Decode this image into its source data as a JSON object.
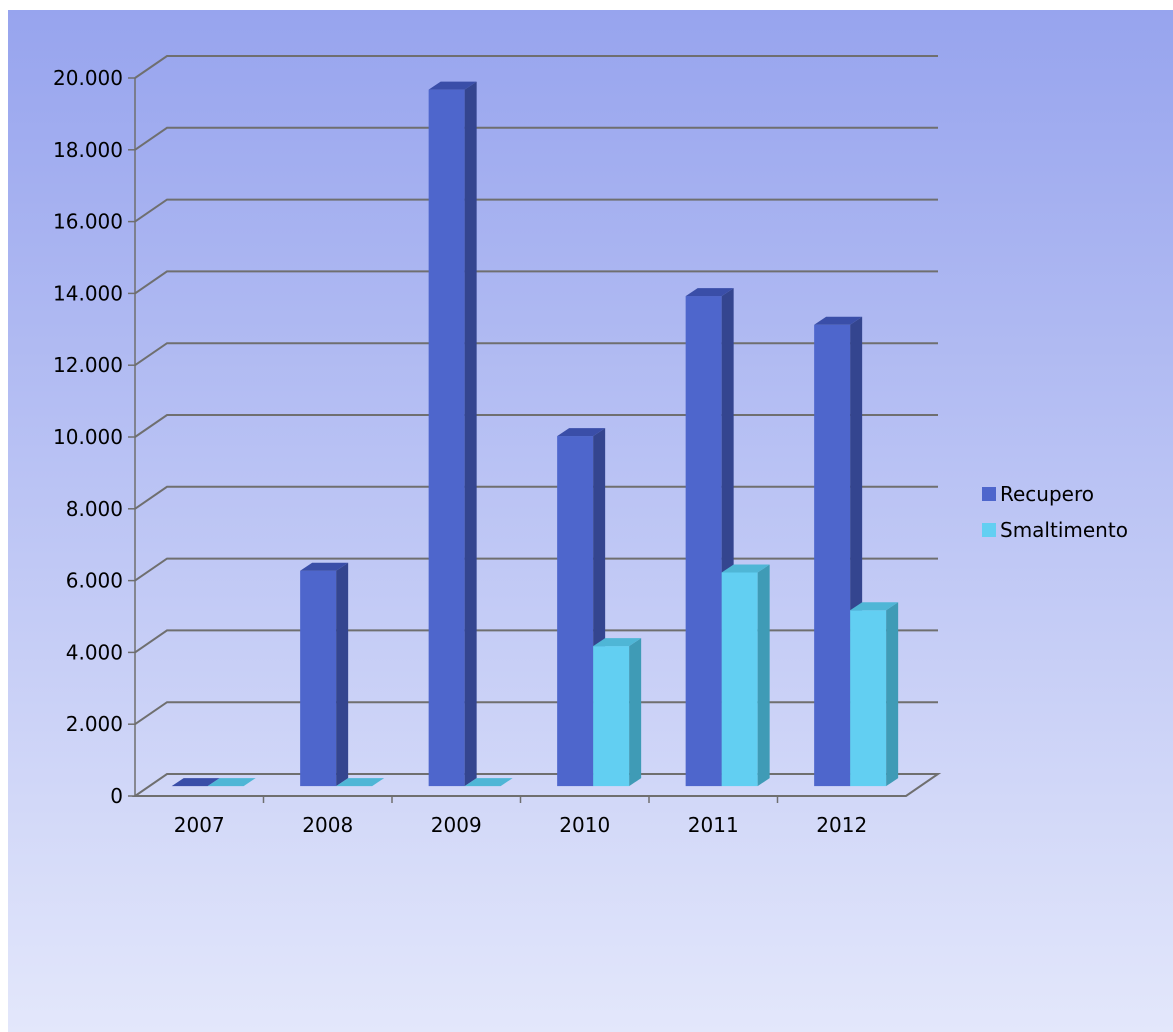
{
  "chart_data": {
    "type": "bar",
    "title": "",
    "xlabel": "",
    "ylabel": "",
    "categories": [
      "2007",
      "2008",
      "2009",
      "2010",
      "2011",
      "2012"
    ],
    "series": [
      {
        "name": "Recupero",
        "values": [
          0,
          6000,
          19400,
          9750,
          13650,
          12850
        ]
      },
      {
        "name": "Smaltimento",
        "values": [
          0,
          0,
          0,
          3900,
          5950,
          4900
        ]
      }
    ],
    "ylim": [
      0,
      20000
    ],
    "yticks": [
      0,
      2000,
      4000,
      6000,
      8000,
      10000,
      12000,
      14000,
      16000,
      18000,
      20000
    ],
    "ytick_labels": [
      "0",
      "2.000",
      "4.000",
      "6.000",
      "8.000",
      "10.000",
      "12.000",
      "14.000",
      "16.000",
      "18.000",
      "20.000"
    ],
    "grid": true,
    "legend_position": "right",
    "style": "3d-clustered",
    "colors": {
      "background_top": "#97a4ee",
      "background_bottom": "#e3e7fb",
      "series_front": [
        "#4e66cc",
        "#62cff2"
      ],
      "series_side": [
        "#34458f",
        "#3f9bb6"
      ],
      "series_top": [
        "#3a4ea8",
        "#4fb6d6"
      ],
      "grid": "#6f6f6f"
    }
  }
}
